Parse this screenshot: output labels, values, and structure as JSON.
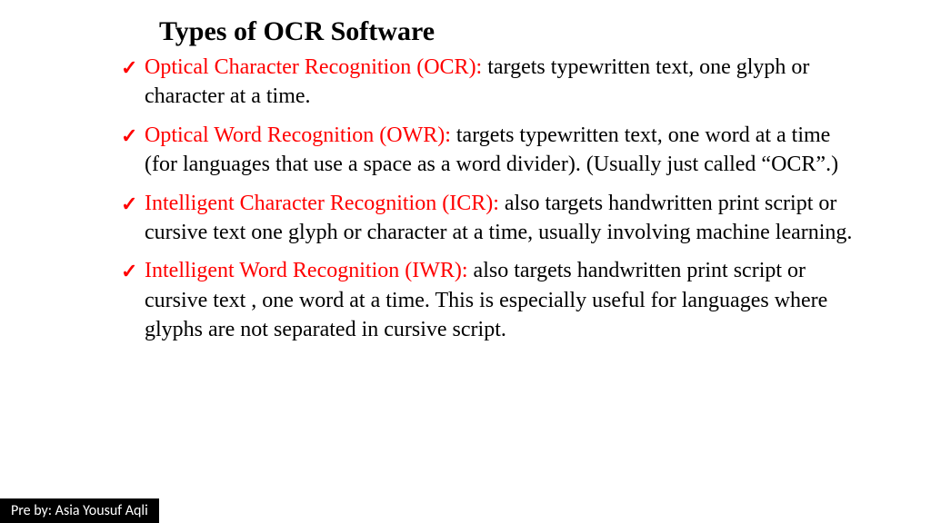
{
  "title": "Types of OCR Software",
  "check_glyph": "✓",
  "colors": {
    "accent": "#ff0000",
    "text": "#000000",
    "footer_bg": "#000000",
    "footer_text": "#ffffff",
    "background": "#ffffff"
  },
  "typography": {
    "title_fontsize": 30,
    "body_fontsize": 24,
    "footer_fontsize": 16,
    "body_font": "Times New Roman",
    "footer_font": "Calibri"
  },
  "items": [
    {
      "term": "Optical Character Recognition (OCR):",
      "desc": " targets typewritten text, one glyph or character at a time."
    },
    {
      "term": "Optical Word Recognition (OWR):",
      "desc": " targets typewritten text, one word at a time (for languages that use a space as a word divider). (Usually just called “OCR”.)"
    },
    {
      "term": "Intelligent Character Recognition (ICR):",
      "desc": " also targets handwritten print script or cursive text one glyph or character at a time, usually involving machine learning."
    },
    {
      "term": "Intelligent Word Recognition (IWR):",
      "desc": " also targets handwritten print script or cursive text , one word at a time. This is especially useful for languages where glyphs are not separated in cursive script."
    }
  ],
  "footer": "Pre by: Asia Yousuf Aqli"
}
